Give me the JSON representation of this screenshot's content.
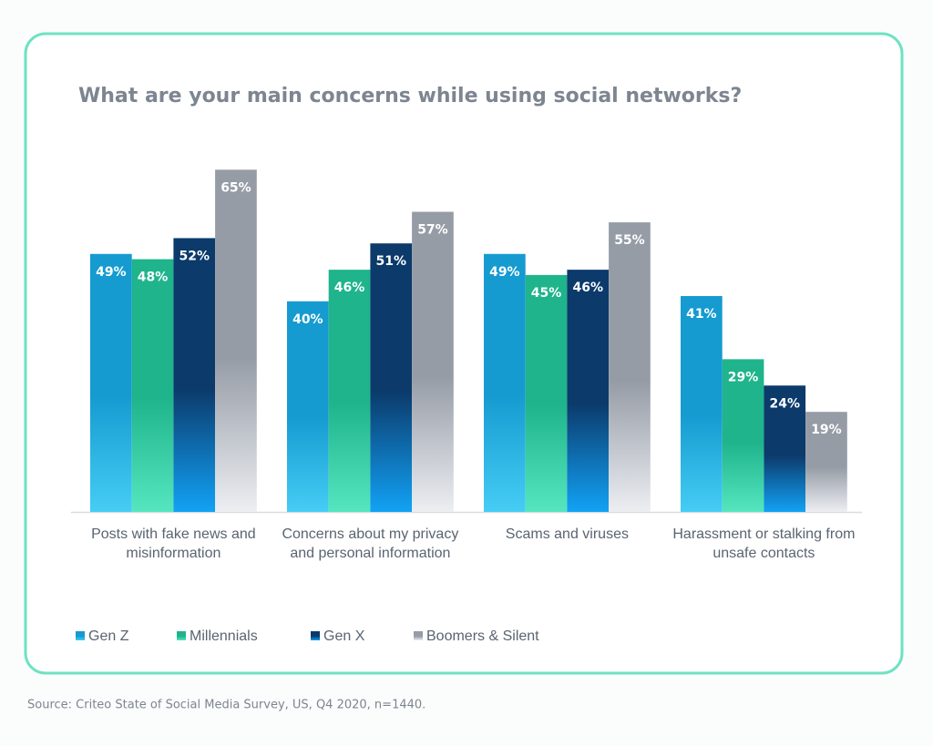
{
  "chart_data": {
    "type": "bar",
    "title": "What are your main concerns while using social networks?",
    "categories": [
      "Posts with fake news and misinformation",
      "Concerns about my privacy and personal information",
      "Scams and viruses",
      "Harassment or stalking from unsafe contacts"
    ],
    "series": [
      {
        "name": "Gen Z",
        "color": "#159bd0",
        "values": [
          49,
          40,
          49,
          41
        ],
        "value_labels": [
          "49%",
          "40%",
          "49%",
          "41%"
        ]
      },
      {
        "name": "Millennials",
        "color": "#1fb48c",
        "values": [
          48,
          46,
          45,
          29
        ],
        "value_labels": [
          "48%",
          "46%",
          "45%",
          "29%"
        ]
      },
      {
        "name": "Gen X",
        "color": "#0b3a6b",
        "values": [
          52,
          51,
          46,
          24
        ],
        "value_labels": [
          "52%",
          "51%",
          "46%",
          "24%"
        ]
      },
      {
        "name": "Boomers & Silent",
        "color": "#969ca6",
        "values": [
          65,
          57,
          55,
          19
        ],
        "value_labels": [
          "65%",
          "57%",
          "55%",
          "19%"
        ]
      }
    ],
    "source": "Source: Criteo State of Social Media Survey, US, Q4 2020, n=1440."
  }
}
